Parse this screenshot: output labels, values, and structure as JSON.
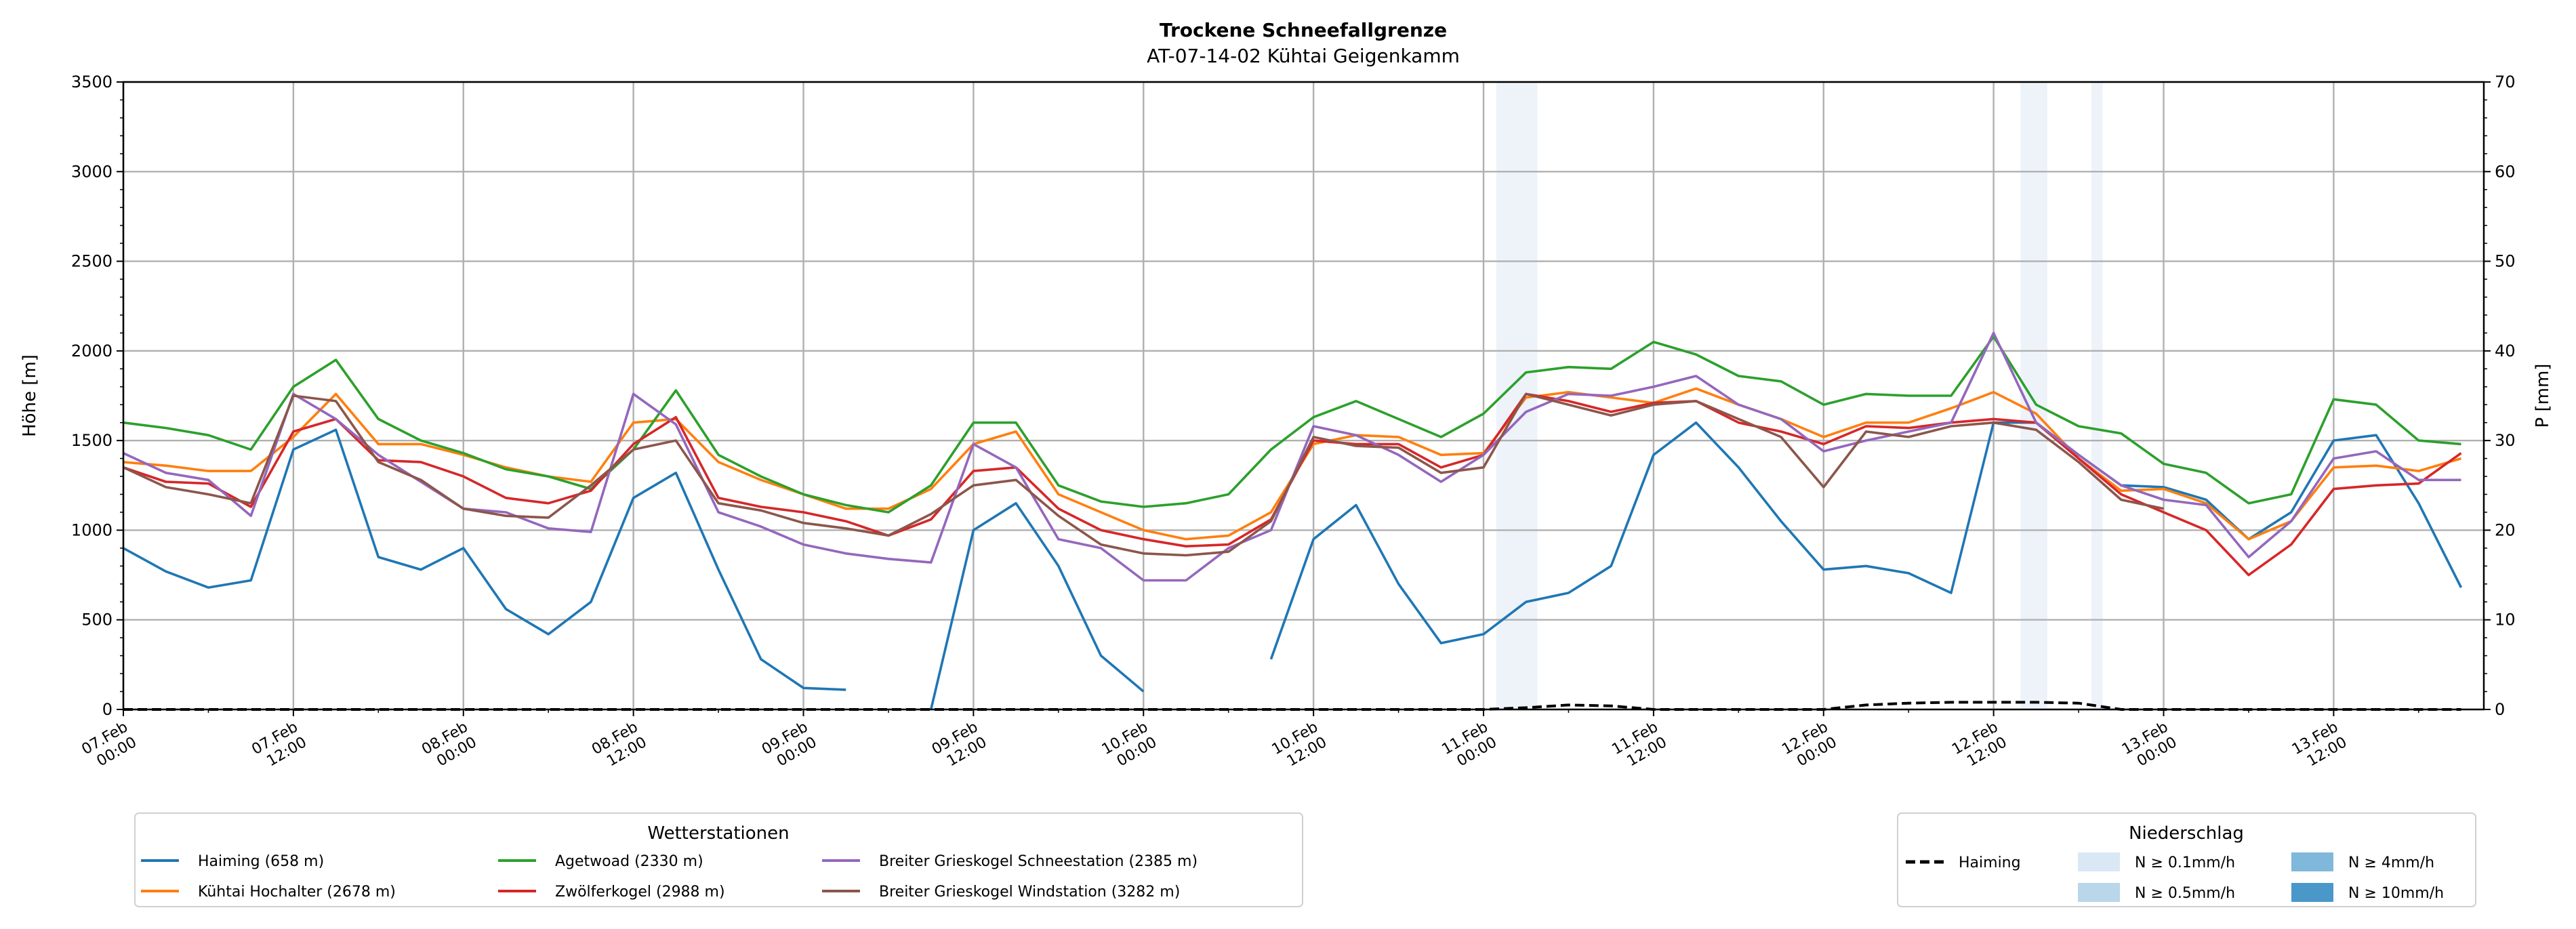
{
  "chart_data": {
    "type": "line",
    "title": "Trockene Schneefallgrenze",
    "subtitle": "AT-07-14-02 Kühtai Geigenkamm",
    "ylabel": "Höhe [m]",
    "y2label": "P [mm]",
    "ylim": [
      0,
      3500
    ],
    "y2lim": [
      0,
      70
    ],
    "yticks": [
      0,
      500,
      1000,
      1500,
      2000,
      2500,
      3000,
      3500
    ],
    "y2ticks": [
      0,
      10,
      20,
      30,
      40,
      50,
      60,
      70
    ],
    "grid": true,
    "x_unit": "hours since 07.Feb 00:00",
    "xlim": [
      0,
      166.6
    ],
    "xticks": [
      {
        "h": 0,
        "l1": "07.Feb",
        "l2": "00:00"
      },
      {
        "h": 12,
        "l1": "07.Feb",
        "l2": "12:00"
      },
      {
        "h": 24,
        "l1": "08.Feb",
        "l2": "00:00"
      },
      {
        "h": 36,
        "l1": "08.Feb",
        "l2": "12:00"
      },
      {
        "h": 48,
        "l1": "09.Feb",
        "l2": "00:00"
      },
      {
        "h": 60,
        "l1": "09.Feb",
        "l2": "12:00"
      },
      {
        "h": 72,
        "l1": "10.Feb",
        "l2": "00:00"
      },
      {
        "h": 84,
        "l1": "10.Feb",
        "l2": "12:00"
      },
      {
        "h": 96,
        "l1": "11.Feb",
        "l2": "00:00"
      },
      {
        "h": 108,
        "l1": "11.Feb",
        "l2": "12:00"
      },
      {
        "h": 120,
        "l1": "12.Feb",
        "l2": "00:00"
      },
      {
        "h": 132,
        "l1": "12.Feb",
        "l2": "12:00"
      },
      {
        "h": 144,
        "l1": "13.Feb",
        "l2": "00:00"
      },
      {
        "h": 156,
        "l1": "13.Feb",
        "l2": "12:00"
      }
    ],
    "x_hours_step": 3,
    "series": [
      {
        "name": "Haiming (658 m)",
        "color": "#1f77b4",
        "values": [
          900,
          770,
          680,
          720,
          1450,
          1560,
          850,
          780,
          900,
          560,
          420,
          600,
          1180,
          1320,
          780,
          280,
          120,
          110,
          null,
          0,
          1000,
          1150,
          800,
          300,
          100,
          null,
          null,
          280,
          950,
          1140,
          700,
          370,
          420,
          600,
          650,
          800,
          1420,
          1600,
          1350,
          1050,
          780,
          800,
          760,
          650,
          1600,
          1600,
          1420,
          1250,
          1240,
          1170,
          950,
          1100,
          1500,
          1530,
          1150,
          680
        ]
      },
      {
        "name": "Kühtai Hochalter (2678 m)",
        "color": "#ff7f0e",
        "values": [
          1380,
          1360,
          1330,
          1330,
          1520,
          1760,
          1480,
          1480,
          1420,
          1350,
          1300,
          1270,
          1600,
          1620,
          1380,
          1280,
          1200,
          1120,
          1120,
          1230,
          1480,
          1550,
          1200,
          1100,
          1000,
          950,
          970,
          1100,
          1480,
          1530,
          1520,
          1420,
          1430,
          1740,
          1770,
          1740,
          1710,
          1790,
          1700,
          1620,
          1520,
          1600,
          1600,
          1680,
          1770,
          1650,
          1400,
          1220,
          1230,
          1150,
          950,
          1050,
          1350,
          1360,
          1330,
          1400
        ]
      },
      {
        "name": "Agetwoad (2330 m)",
        "color": "#2ca02c",
        "values": [
          1600,
          1570,
          1530,
          1450,
          1800,
          1950,
          1620,
          1500,
          1430,
          1340,
          1300,
          1230,
          1450,
          1780,
          1420,
          1300,
          1200,
          1140,
          1100,
          1250,
          1600,
          1600,
          1250,
          1160,
          1130,
          1150,
          1200,
          1450,
          1630,
          1720,
          1620,
          1520,
          1650,
          1880,
          1910,
          1900,
          2050,
          1980,
          1860,
          1830,
          1700,
          1760,
          1750,
          1750,
          2080,
          1700,
          1580,
          1540,
          1370,
          1320,
          1150,
          1200,
          1730,
          1700,
          1500,
          1480
        ]
      },
      {
        "name": "Zwölferkogel (2988 m)",
        "color": "#d62728",
        "values": [
          1350,
          1270,
          1260,
          1130,
          1550,
          1620,
          1390,
          1380,
          1300,
          1180,
          1150,
          1220,
          1480,
          1630,
          1180,
          1130,
          1100,
          1050,
          970,
          1060,
          1330,
          1350,
          1120,
          1000,
          950,
          910,
          920,
          1060,
          1500,
          1480,
          1480,
          1350,
          1420,
          1760,
          1720,
          1660,
          1710,
          1720,
          1600,
          1550,
          1480,
          1580,
          1570,
          1600,
          1620,
          1600,
          1400,
          1200,
          1100,
          1000,
          750,
          920,
          1230,
          1250,
          1260,
          1430
        ]
      },
      {
        "name": "Breiter Grieskogel Schneestation (2385 m)",
        "color": "#9467bd",
        "values": [
          1430,
          1320,
          1280,
          1080,
          1760,
          1620,
          1420,
          1270,
          1120,
          1100,
          1010,
          990,
          1760,
          1590,
          1100,
          1020,
          920,
          870,
          840,
          820,
          1480,
          1350,
          950,
          900,
          720,
          720,
          900,
          1000,
          1580,
          1530,
          1420,
          1270,
          1420,
          1660,
          1760,
          1750,
          1800,
          1860,
          1700,
          1620,
          1440,
          1500,
          1550,
          1600,
          2100,
          1600,
          1420,
          1250,
          1170,
          1140,
          850,
          1050,
          1400,
          1440,
          1280,
          1280
        ]
      },
      {
        "name": "Breiter Grieskogel Windstation (3282 m)",
        "color": "#8c564b",
        "values": [
          1350,
          1240,
          1200,
          1150,
          1750,
          1720,
          1380,
          1280,
          1120,
          1080,
          1070,
          1250,
          1450,
          1500,
          1150,
          1110,
          1040,
          1010,
          970,
          1090,
          1250,
          1280,
          1080,
          920,
          870,
          860,
          880,
          1050,
          1520,
          1470,
          1460,
          1320,
          1350,
          1760,
          1700,
          1640,
          1700,
          1720,
          1620,
          1520,
          1240,
          1550,
          1520,
          1580,
          1600,
          1560,
          1380,
          1170,
          1120,
          null,
          null,
          null,
          null,
          null,
          null,
          null
        ]
      }
    ],
    "precip_series": {
      "name": "Haiming",
      "color": "#000000",
      "axis": "right",
      "values": [
        0,
        0,
        0,
        0,
        0,
        0,
        0,
        0,
        0,
        0,
        0,
        0,
        0,
        0,
        0,
        0,
        0,
        0,
        0,
        0,
        0,
        0,
        0,
        0,
        0,
        0,
        0,
        0,
        0,
        0,
        0,
        0,
        0,
        0.2,
        0.5,
        0.4,
        0,
        0,
        0,
        0,
        0,
        0.5,
        0.7,
        0.8,
        0.8,
        0.8,
        0.7,
        0,
        0,
        0,
        0,
        0,
        0,
        0,
        0,
        0
      ]
    },
    "precip_bands": [
      {
        "from_h": 96.9,
        "to_h": 99.8,
        "class": "N ≥ 0.1mm/h"
      },
      {
        "from_h": 133.9,
        "to_h": 135.8,
        "class": "N ≥ 0.1mm/h"
      },
      {
        "from_h": 138.9,
        "to_h": 139.7,
        "class": "N ≥ 0.1mm/h"
      }
    ],
    "legend_stations": {
      "title": "Wetterstationen",
      "placement": "bottom-left"
    },
    "legend_precip": {
      "title": "Niederschlag",
      "placement": "bottom-right",
      "line_label": "Haiming",
      "classes": [
        {
          "label": "N ≥ 0.1mm/h",
          "color": "#dae8f5"
        },
        {
          "label": "N ≥ 0.5mm/h",
          "color": "#b9d6ea"
        },
        {
          "label": "N ≥ 4mm/h",
          "color": "#7fb8da"
        },
        {
          "label": "N ≥ 10mm/h",
          "color": "#4a98c9"
        }
      ]
    }
  }
}
